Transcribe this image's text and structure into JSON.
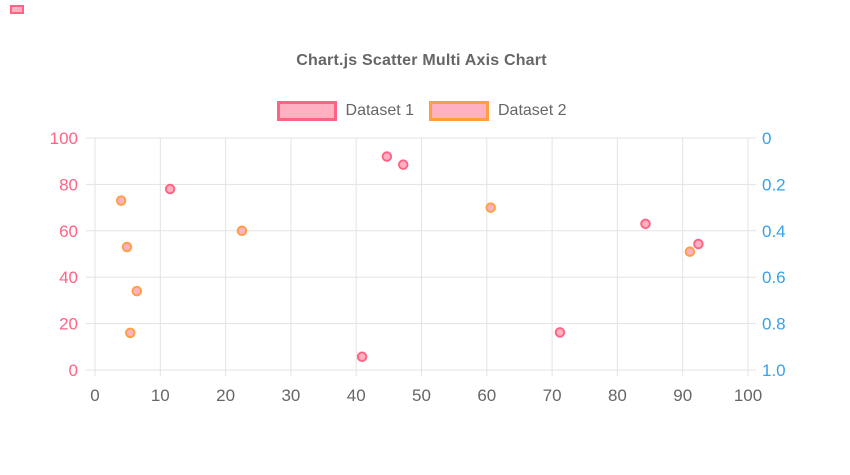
{
  "page": {
    "background": "#ffffff"
  },
  "decoration": {
    "corner_swatch": {
      "fill": "#ffb1c1",
      "border": "#ff6384"
    }
  },
  "chart": {
    "title": "Chart.js Scatter Multi Axis Chart",
    "title_color": "#666666",
    "legend": [
      {
        "label": "Dataset 1",
        "box_fill": "#ffb1c1",
        "box_border": "#ff6384"
      },
      {
        "label": "Dataset 2",
        "box_fill": "#ffb1c1",
        "box_border": "#ff9f40"
      }
    ]
  },
  "chart_data": {
    "type": "scatter",
    "title": "Chart.js Scatter Multi Axis Chart",
    "legend_position": "top",
    "grid": true,
    "grid_color": "#e3e3e3",
    "x_axis": {
      "min": 0,
      "max": 100,
      "ticks": [
        "0",
        "10",
        "20",
        "30",
        "40",
        "50",
        "60",
        "70",
        "80",
        "90",
        "100"
      ],
      "tick_color": "#666666"
    },
    "y_axis_left": {
      "series": "Dataset 1",
      "min": 0,
      "max": 100,
      "ticks": [
        "0",
        "20",
        "40",
        "60",
        "80",
        "100"
      ],
      "tick_color": "#ff6384",
      "position": "left"
    },
    "y_axis_right": {
      "series": "Dataset 2",
      "min": 0,
      "max": 1,
      "reversed": true,
      "ticks": [
        "0",
        "0.2",
        "0.4",
        "0.6",
        "0.8",
        "1.0"
      ],
      "tick_color": "#36a2eb",
      "position": "right"
    },
    "series": [
      {
        "name": "Dataset 1",
        "y_axis": "left",
        "point_border_color": "#ff6384",
        "point_fill_color": "#ffb1c1",
        "points": [
          {
            "x": 11.5,
            "y": 78
          },
          {
            "x": 44.7,
            "y": 92
          },
          {
            "x": 47.2,
            "y": 88.5
          },
          {
            "x": 40.9,
            "y": 5.7
          },
          {
            "x": 84.3,
            "y": 63
          },
          {
            "x": 92.4,
            "y": 54.3
          },
          {
            "x": 71.2,
            "y": 16.2
          }
        ]
      },
      {
        "name": "Dataset 2",
        "y_axis": "right",
        "point_border_color": "#ff9f40",
        "point_fill_color": "#ffb1c1",
        "points": [
          {
            "x": 4.0,
            "y": 0.27
          },
          {
            "x": 4.9,
            "y": 0.47
          },
          {
            "x": 22.5,
            "y": 0.4
          },
          {
            "x": 6.4,
            "y": 0.66
          },
          {
            "x": 5.4,
            "y": 0.84
          },
          {
            "x": 60.6,
            "y": 0.3
          },
          {
            "x": 91.1,
            "y": 0.49
          }
        ]
      }
    ]
  }
}
